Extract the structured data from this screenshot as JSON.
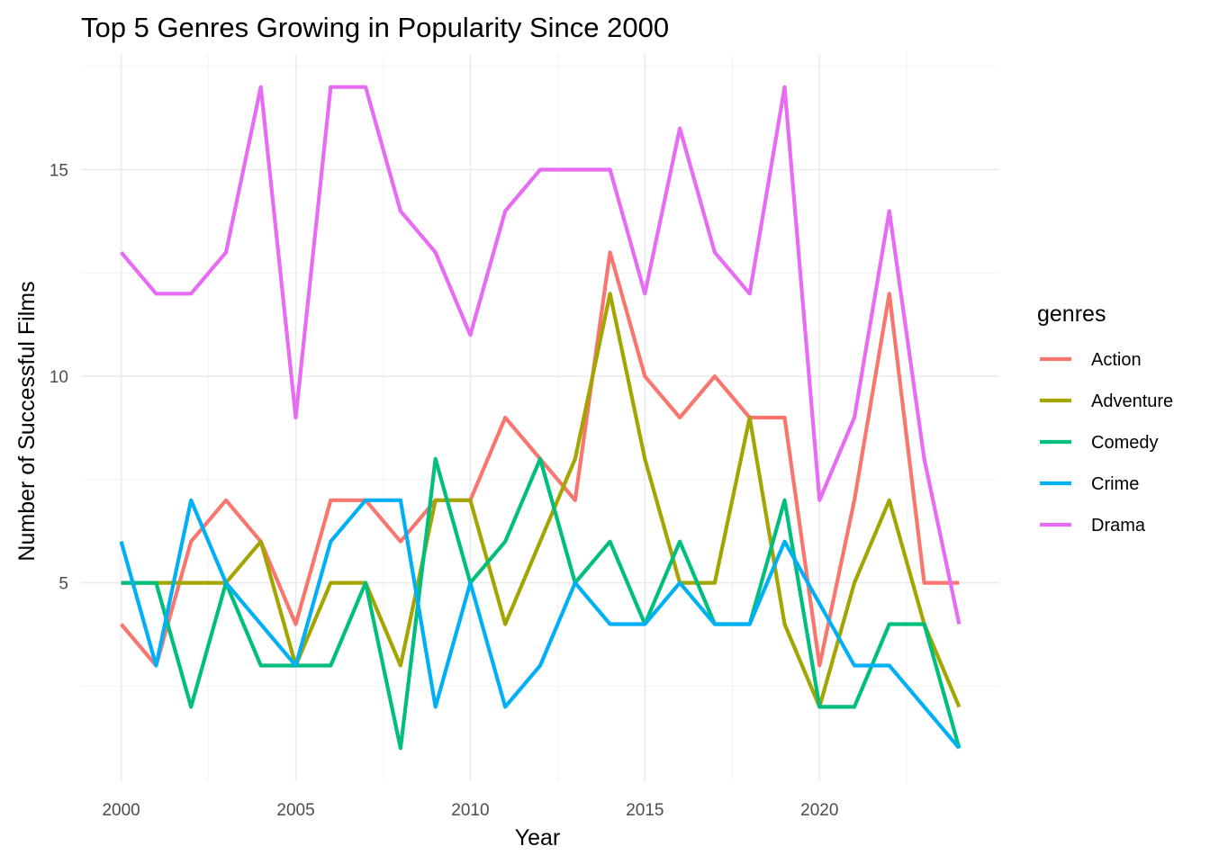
{
  "chart_data": {
    "type": "line",
    "title": "Top 5 Genres Growing in Popularity Since 2000",
    "xlabel": "Year",
    "ylabel": "Number of Successful Films",
    "x": [
      2000,
      2001,
      2002,
      2003,
      2004,
      2005,
      2006,
      2007,
      2008,
      2009,
      2010,
      2011,
      2012,
      2013,
      2014,
      2015,
      2016,
      2017,
      2018,
      2019,
      2020,
      2021,
      2022,
      2023,
      2024
    ],
    "xlim": [
      1998.85,
      2025.15
    ],
    "ylim": [
      0.2,
      17.8
    ],
    "x_ticks": [
      2000,
      2005,
      2010,
      2015,
      2020
    ],
    "x_tick_labels": [
      "2000",
      "2005",
      "2010",
      "2015",
      "2020"
    ],
    "y_ticks": [
      5,
      10,
      15
    ],
    "y_tick_labels": [
      "5",
      "10",
      "15"
    ],
    "grid": true,
    "legend_position": "right",
    "legend_title": "genres",
    "series": [
      {
        "name": "Action",
        "color": "#F8766D",
        "values": [
          4,
          3,
          6,
          7,
          6,
          4,
          7,
          7,
          6,
          7,
          7,
          9,
          8,
          7,
          13,
          10,
          9,
          10,
          9,
          9,
          3,
          7,
          12,
          5,
          5
        ]
      },
      {
        "name": "Adventure",
        "color": "#A3A500",
        "values": [
          5,
          5,
          5,
          5,
          6,
          3,
          5,
          5,
          3,
          7,
          7,
          4,
          6,
          8,
          12,
          8,
          5,
          5,
          9,
          4,
          2,
          5,
          7,
          4,
          2
        ]
      },
      {
        "name": "Comedy",
        "color": "#00BF7D",
        "values": [
          5,
          5,
          2,
          5,
          3,
          3,
          3,
          5,
          1,
          8,
          5,
          6,
          8,
          5,
          6,
          4,
          6,
          4,
          4,
          7,
          2,
          2,
          4,
          4,
          1
        ]
      },
      {
        "name": "Crime",
        "color": "#00B0F6",
        "values": [
          6,
          3,
          7,
          5,
          null,
          3,
          6,
          7,
          7,
          2,
          5,
          2,
          3,
          5,
          4,
          4,
          5,
          4,
          4,
          6,
          null,
          3,
          3,
          null,
          1
        ]
      },
      {
        "name": "Drama",
        "color": "#E76BF3",
        "values": [
          13,
          12,
          12,
          13,
          17,
          9,
          17,
          17,
          14,
          13,
          11,
          14,
          15,
          15,
          15,
          12,
          16,
          13,
          12,
          17,
          7,
          9,
          14,
          8,
          4
        ]
      }
    ]
  }
}
